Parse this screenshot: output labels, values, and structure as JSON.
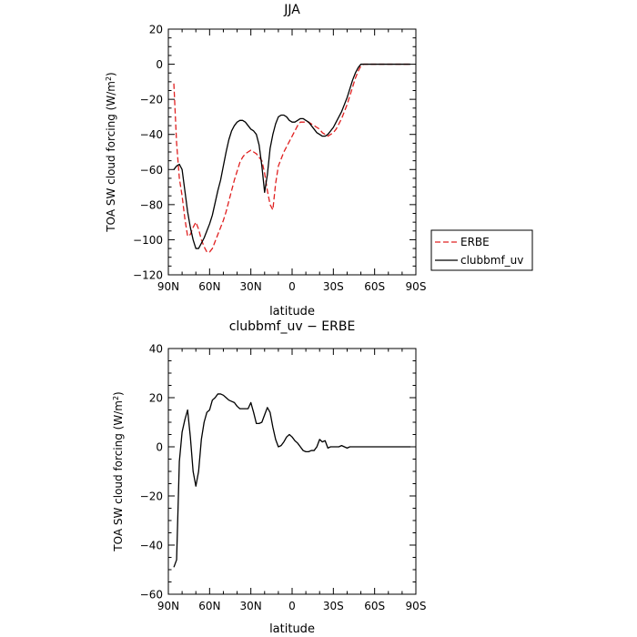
{
  "chart_data": [
    {
      "type": "line",
      "title": "JJA",
      "xlabel": "latitude",
      "ylabel_main": "TOA SW cloud forcing (W/m",
      "ylabel_sup": "2",
      "ylabel_tail": ")",
      "xlim": [
        90,
        -90
      ],
      "ylim": [
        -120,
        20
      ],
      "x_ticks": [
        90,
        60,
        30,
        0,
        -30,
        -60,
        -90
      ],
      "x_tick_labels": [
        "90N",
        "60N",
        "30N",
        "0",
        "30S",
        "60S",
        "90S"
      ],
      "y_ticks": [
        20,
        0,
        -20,
        -40,
        -60,
        -80,
        -100,
        -120
      ],
      "y_tick_labels": [
        "20",
        "0",
        "−20",
        "−40",
        "−60",
        "−80",
        "−100",
        "−120"
      ],
      "legend": "right",
      "series": [
        {
          "name": "ERBE",
          "color": "#e02020",
          "dashed": true,
          "x": [
            86,
            84,
            82,
            80,
            78,
            76,
            74,
            72,
            70,
            68,
            66,
            64,
            62,
            60,
            58,
            56,
            54,
            52,
            50,
            48,
            46,
            44,
            42,
            40,
            38,
            36,
            34,
            32,
            30,
            28,
            26,
            24,
            22,
            20,
            18,
            16,
            14,
            12,
            10,
            8,
            6,
            4,
            2,
            0,
            -2,
            -4,
            -6,
            -8,
            -10,
            -12,
            -14,
            -16,
            -18,
            -20,
            -22,
            -24,
            -26,
            -28,
            -30,
            -32,
            -34,
            -36,
            -38,
            -40,
            -42,
            -44,
            -46,
            -48,
            -50,
            -52,
            -54,
            -56,
            -58,
            -60,
            -62,
            -64,
            -66,
            -68,
            -70,
            -72,
            -74,
            -76,
            -78,
            -80,
            -82,
            -84,
            -86
          ],
          "y": [
            -11,
            -45,
            -65,
            -75,
            -88,
            -98,
            -97,
            -93,
            -90,
            -94,
            -100,
            -104,
            -107,
            -107,
            -105,
            -101,
            -97,
            -93,
            -89,
            -84,
            -78,
            -72,
            -66,
            -61,
            -56,
            -53,
            -51,
            -50,
            -49,
            -50,
            -51,
            -53,
            -55,
            -62,
            -72,
            -80,
            -83,
            -68,
            -58,
            -54,
            -50,
            -47,
            -44,
            -41,
            -38,
            -35,
            -33,
            -33,
            -33,
            -33,
            -34,
            -35,
            -36,
            -37,
            -39,
            -40,
            -41,
            -40,
            -39,
            -37,
            -34,
            -31,
            -27,
            -23,
            -18,
            -13,
            -8,
            -4,
            -1,
            0,
            0,
            0,
            0,
            0,
            0,
            0,
            0,
            0,
            0,
            0,
            0,
            0,
            0,
            0,
            0,
            0,
            0
          ]
        },
        {
          "name": "clubbmf_uv",
          "color": "#000000",
          "dashed": false,
          "x": [
            86,
            84,
            82,
            80,
            78,
            76,
            74,
            72,
            70,
            68,
            66,
            64,
            62,
            60,
            58,
            56,
            54,
            52,
            50,
            48,
            46,
            44,
            42,
            40,
            38,
            36,
            34,
            32,
            30,
            28,
            26,
            24,
            22,
            20,
            18,
            16,
            14,
            12,
            10,
            8,
            6,
            4,
            2,
            0,
            -2,
            -4,
            -6,
            -8,
            -10,
            -12,
            -14,
            -16,
            -18,
            -20,
            -22,
            -24,
            -26,
            -28,
            -30,
            -32,
            -34,
            -36,
            -38,
            -40,
            -42,
            -44,
            -46,
            -48,
            -50,
            -52,
            -54,
            -56,
            -58,
            -60,
            -62,
            -64,
            -66,
            -68,
            -70,
            -72,
            -74,
            -76,
            -78,
            -80,
            -82,
            -84,
            -86
          ],
          "y": [
            -60,
            -58,
            -57,
            -60,
            -72,
            -84,
            -93,
            -100,
            -105,
            -105,
            -102,
            -99,
            -95,
            -91,
            -86,
            -79,
            -72,
            -66,
            -58,
            -50,
            -43,
            -38,
            -35,
            -33,
            -32,
            -32,
            -33,
            -35,
            -37,
            -38,
            -40,
            -46,
            -58,
            -73,
            -63,
            -48,
            -40,
            -34,
            -30,
            -29,
            -29,
            -30,
            -32,
            -33,
            -33,
            -32,
            -31,
            -31,
            -32,
            -33,
            -35,
            -37,
            -39,
            -40,
            -41,
            -41,
            -40,
            -38,
            -36,
            -33,
            -30,
            -27,
            -23,
            -19,
            -14,
            -9,
            -5,
            -2,
            0,
            0,
            0,
            0,
            0,
            0,
            0,
            0,
            0,
            0,
            0,
            0,
            0,
            0,
            0,
            0,
            0,
            0,
            0
          ]
        }
      ]
    },
    {
      "type": "line",
      "title": "clubbmf_uv − ERBE",
      "xlabel": "latitude",
      "ylabel_main": "TOA SW cloud forcing (W/m",
      "ylabel_sup": "2",
      "ylabel_tail": ")",
      "xlim": [
        90,
        -90
      ],
      "ylim": [
        -60,
        40
      ],
      "x_ticks": [
        90,
        60,
        30,
        0,
        -30,
        -60,
        -90
      ],
      "x_tick_labels": [
        "90N",
        "60N",
        "30N",
        "0",
        "30S",
        "60S",
        "90S"
      ],
      "y_ticks": [
        40,
        20,
        0,
        -20,
        -40,
        -60
      ],
      "y_tick_labels": [
        "40",
        "20",
        "0",
        "−20",
        "−40",
        "−60"
      ],
      "series": [
        {
          "name": "",
          "color": "#000000",
          "dashed": false,
          "x": [
            86,
            84,
            82,
            80,
            78,
            76,
            74,
            72,
            70,
            68,
            66,
            64,
            62,
            60,
            58,
            56,
            54,
            52,
            50,
            48,
            46,
            44,
            42,
            40,
            38,
            36,
            34,
            32,
            30,
            28,
            26,
            24,
            22,
            20,
            18,
            16,
            14,
            12,
            10,
            8,
            6,
            4,
            2,
            0,
            -2,
            -4,
            -6,
            -8,
            -10,
            -12,
            -14,
            -16,
            -18,
            -20,
            -22,
            -24,
            -26,
            -28,
            -30,
            -32,
            -34,
            -36,
            -38,
            -40,
            -42,
            -44,
            -46,
            -48,
            -50,
            -52,
            -54,
            -56,
            -58,
            -60,
            -62,
            -64,
            -66,
            -68,
            -70,
            -72,
            -74,
            -76,
            -78,
            -80,
            -82,
            -84,
            -86
          ],
          "y": [
            -49,
            -46,
            -6,
            6,
            11,
            15,
            4,
            -10,
            -16,
            -10,
            3,
            10,
            14,
            15,
            19,
            20,
            21.5,
            21.5,
            21,
            20,
            19,
            18.5,
            18,
            16.5,
            15.5,
            15.5,
            15.5,
            15.5,
            18,
            14,
            9.5,
            9.5,
            10,
            13,
            16,
            14,
            8,
            3,
            0,
            0.5,
            2,
            4,
            5,
            4,
            2.5,
            1.5,
            0,
            -1.5,
            -2,
            -2,
            -1.5,
            -1.5,
            0,
            3,
            2,
            2.5,
            -0.5,
            0,
            0,
            0,
            0,
            0.5,
            0,
            -0.5,
            0,
            0,
            0,
            0,
            0,
            0,
            0,
            0,
            0,
            0,
            0,
            0,
            0,
            0,
            0,
            0,
            0,
            0,
            0,
            0,
            0,
            0,
            0
          ]
        }
      ]
    }
  ]
}
